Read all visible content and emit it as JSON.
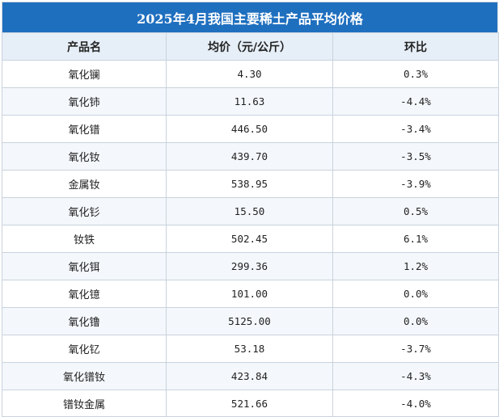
{
  "title": "2025年4月我国主要稀土产品平均价格",
  "headers": {
    "name": "产品名",
    "price": "均价（元/公斤）",
    "change": "环比"
  },
  "rows": [
    {
      "name": "氧化镧",
      "price": "4.30",
      "change": "0.3%"
    },
    {
      "name": "氧化铈",
      "price": "11.63",
      "change": "-4.4%"
    },
    {
      "name": "氧化镨",
      "price": "446.50",
      "change": "-3.4%"
    },
    {
      "name": "氧化钕",
      "price": "439.70",
      "change": "-3.5%"
    },
    {
      "name": "金属钕",
      "price": "538.95",
      "change": "-3.9%"
    },
    {
      "name": "氧化钐",
      "price": "15.50",
      "change": "0.5%"
    },
    {
      "name": "钕铁",
      "price": "502.45",
      "change": "6.1%"
    },
    {
      "name": "氧化铒",
      "price": "299.36",
      "change": "1.2%"
    },
    {
      "name": "氧化镱",
      "price": "101.00",
      "change": "0.0%"
    },
    {
      "name": "氧化镥",
      "price": "5125.00",
      "change": "0.0%"
    },
    {
      "name": "氧化钇",
      "price": "53.18",
      "change": "-3.7%"
    },
    {
      "name": "氧化镨钕",
      "price": "423.84",
      "change": "-4.3%"
    },
    {
      "name": "镨钕金属",
      "price": "521.66",
      "change": "-4.0%"
    }
  ]
}
